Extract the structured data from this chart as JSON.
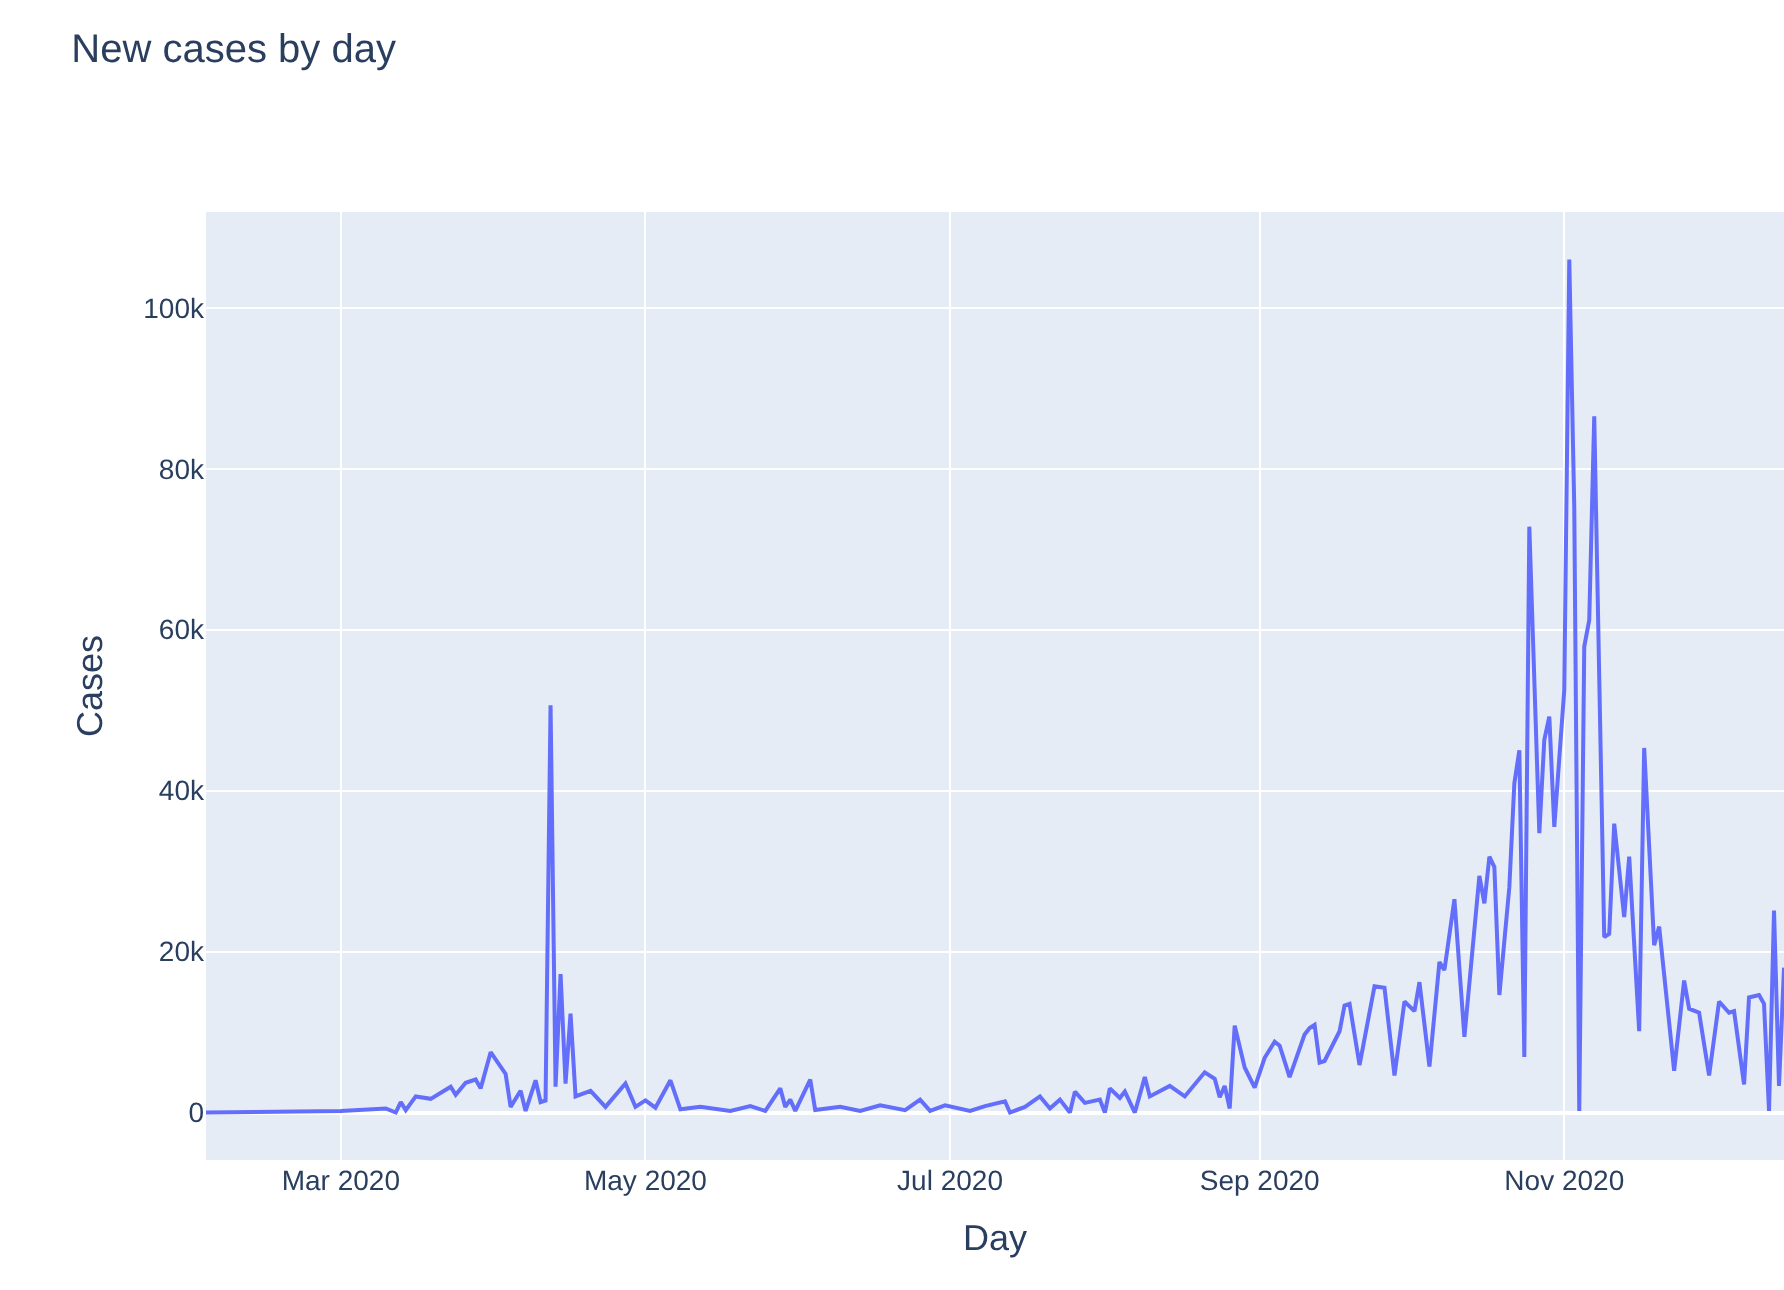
{
  "chart_data": {
    "type": "line",
    "title": "New cases by day",
    "xlabel": "Day",
    "ylabel": "Cases",
    "x": [
      "2020-02-03",
      "2020-03-01",
      "2020-03-10",
      "2020-03-12",
      "2020-03-13",
      "2020-03-14",
      "2020-03-16",
      "2020-03-19",
      "2020-03-23",
      "2020-03-24",
      "2020-03-26",
      "2020-03-28",
      "2020-03-29",
      "2020-03-31",
      "2020-04-03",
      "2020-04-04",
      "2020-04-06",
      "2020-04-07",
      "2020-04-09",
      "2020-04-10",
      "2020-04-11",
      "2020-04-12",
      "2020-04-13",
      "2020-04-14",
      "2020-04-15",
      "2020-04-16",
      "2020-04-17",
      "2020-04-20",
      "2020-04-23",
      "2020-04-27",
      "2020-04-29",
      "2020-05-01",
      "2020-05-03",
      "2020-05-06",
      "2020-05-08",
      "2020-05-12",
      "2020-05-18",
      "2020-05-22",
      "2020-05-25",
      "2020-05-28",
      "2020-05-29",
      "2020-05-30",
      "2020-05-31",
      "2020-06-03",
      "2020-06-04",
      "2020-06-09",
      "2020-06-13",
      "2020-06-17",
      "2020-06-22",
      "2020-06-25",
      "2020-06-27",
      "2020-06-30",
      "2020-07-05",
      "2020-07-08",
      "2020-07-12",
      "2020-07-13",
      "2020-07-16",
      "2020-07-19",
      "2020-07-21",
      "2020-07-23",
      "2020-07-25",
      "2020-07-26",
      "2020-07-28",
      "2020-07-31",
      "2020-08-01",
      "2020-08-02",
      "2020-08-04",
      "2020-08-05",
      "2020-08-07",
      "2020-08-09",
      "2020-08-10",
      "2020-08-14",
      "2020-08-17",
      "2020-08-21",
      "2020-08-23",
      "2020-08-24",
      "2020-08-25",
      "2020-08-26",
      "2020-08-27",
      "2020-08-29",
      "2020-08-31",
      "2020-09-02",
      "2020-09-04",
      "2020-09-05",
      "2020-09-07",
      "2020-09-10",
      "2020-09-11",
      "2020-09-12",
      "2020-09-13",
      "2020-09-14",
      "2020-09-17",
      "2020-09-18",
      "2020-09-19",
      "2020-09-21",
      "2020-09-24",
      "2020-09-26",
      "2020-09-28",
      "2020-09-30",
      "2020-10-02",
      "2020-10-03",
      "2020-10-05",
      "2020-10-07",
      "2020-10-08",
      "2020-10-10",
      "2020-10-12",
      "2020-10-15",
      "2020-10-16",
      "2020-10-17",
      "2020-10-18",
      "2020-10-19",
      "2020-10-21",
      "2020-10-22",
      "2020-10-23",
      "2020-10-24",
      "2020-10-25",
      "2020-10-27",
      "2020-10-28",
      "2020-10-29",
      "2020-10-30",
      "2020-11-01",
      "2020-11-02",
      "2020-11-03",
      "2020-11-04",
      "2020-11-05",
      "2020-11-06",
      "2020-11-07",
      "2020-11-09",
      "2020-11-10",
      "2020-11-11",
      "2020-11-13",
      "2020-11-14",
      "2020-11-16",
      "2020-11-17",
      "2020-11-19",
      "2020-11-20",
      "2020-11-23",
      "2020-11-25",
      "2020-11-26",
      "2020-11-28",
      "2020-11-30",
      "2020-12-02",
      "2020-12-04",
      "2020-12-05",
      "2020-12-07",
      "2020-12-08",
      "2020-12-10",
      "2020-12-11",
      "2020-12-12",
      "2020-12-13",
      "2020-12-14",
      "2020-12-15"
    ],
    "series": [
      {
        "color": "#636efa",
        "values": [
          0,
          200,
          500,
          0,
          1300,
          300,
          2000,
          1700,
          3200,
          2200,
          3700,
          4100,
          3000,
          7500,
          4800,
          700,
          2700,
          200,
          4000,
          1300,
          1500,
          50600,
          3200,
          17200,
          3600,
          12300,
          2000,
          2700,
          700,
          3600,
          700,
          1500,
          600,
          4000,
          400,
          700,
          200,
          800,
          200,
          3000,
          700,
          1600,
          200,
          4100,
          300,
          700,
          200,
          900,
          300,
          1600,
          200,
          900,
          200,
          800,
          1400,
          0,
          700,
          2000,
          500,
          1600,
          0,
          2600,
          1200,
          1600,
          0,
          3000,
          1800,
          2600,
          0,
          4400,
          2000,
          3300,
          2000,
          5000,
          4200,
          1900,
          3300,
          500,
          10800,
          5600,
          3100,
          6800,
          8800,
          8300,
          4400,
          9700,
          10500,
          10900,
          6200,
          6400,
          10100,
          13300,
          13500,
          5900,
          15700,
          15500,
          4600,
          13800,
          12600,
          16200,
          5700,
          18700,
          17700,
          26500,
          9400,
          29400,
          26000,
          31800,
          30500,
          14600,
          28000,
          40900,
          45000,
          6900,
          72800,
          34700,
          46300,
          49200,
          35500,
          52500,
          106000,
          75300,
          200,
          57900,
          61200,
          86500,
          21800,
          22200,
          35900,
          24300,
          31800,
          10100,
          45300,
          20800,
          23100,
          5200,
          16400,
          12900,
          12400,
          4600,
          13800,
          12400,
          12600,
          3500,
          14300,
          14600,
          13500,
          200,
          25100,
          3300,
          18000
        ]
      }
    ],
    "xlim": [
      "2020-02-03",
      "2020-12-15"
    ],
    "xticks": [
      {
        "value": "2020-03-01",
        "label": "Mar 2020"
      },
      {
        "value": "2020-05-01",
        "label": "May 2020"
      },
      {
        "value": "2020-07-01",
        "label": "Jul 2020"
      },
      {
        "value": "2020-09-01",
        "label": "Sep 2020"
      },
      {
        "value": "2020-11-01",
        "label": "Nov 2020"
      }
    ],
    "ylim": [
      -5900,
      111900
    ],
    "yticks": [
      0,
      {
        "value": 20000,
        "label": "20k"
      },
      {
        "value": 40000,
        "label": "40k"
      },
      {
        "value": 60000,
        "label": "60k"
      },
      {
        "value": 80000,
        "label": "80k"
      },
      {
        "value": 100000,
        "label": "100k"
      }
    ],
    "grid": true
  }
}
